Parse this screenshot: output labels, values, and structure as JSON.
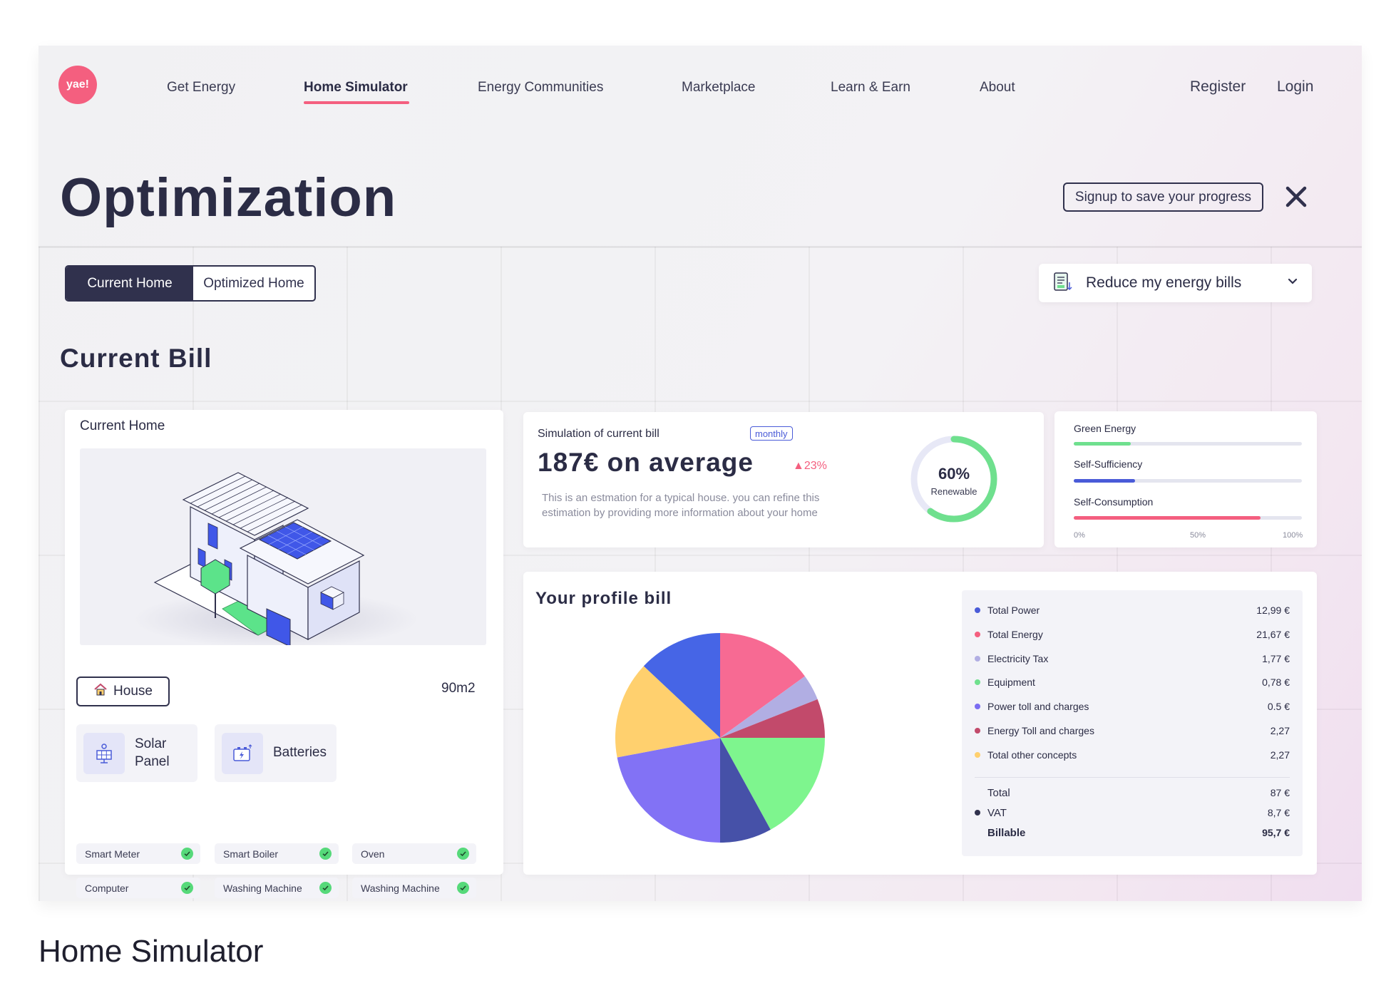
{
  "brand": {
    "logo_text": "yae!",
    "accent": "#f45f7f",
    "navy": "#30314d"
  },
  "nav": {
    "items": [
      {
        "label": "Get Energy",
        "active": false
      },
      {
        "label": "Home Simulator",
        "active": true
      },
      {
        "label": "Energy Communities",
        "active": false
      },
      {
        "label": "Marketplace",
        "active": false
      },
      {
        "label": "Learn & Earn",
        "active": false
      },
      {
        "label": "About",
        "active": false
      }
    ],
    "register": "Register",
    "login": "Login"
  },
  "page": {
    "title": "Optimization",
    "signup_label": "Signup to save your progress",
    "close_icon": "close-icon"
  },
  "toggle": {
    "options": [
      "Current Home",
      "Optimized Home"
    ],
    "selected": "Current Home"
  },
  "goal_select": {
    "value": "Reduce my energy bills",
    "icon": "bill-icon"
  },
  "section": {
    "title": "Current Bill"
  },
  "home_card": {
    "title": "Current Home",
    "type_label": "House",
    "area": "90m2",
    "features": [
      {
        "label_line1": "Solar",
        "label_line2": "Panel",
        "icon": "solar-panel-icon"
      },
      {
        "label_line1": "Batteries",
        "label_line2": "",
        "icon": "battery-icon"
      }
    ],
    "appliances": [
      {
        "label": "Smart Meter",
        "checked": true
      },
      {
        "label": "Smart Boiler",
        "checked": true
      },
      {
        "label": "Oven",
        "checked": true
      },
      {
        "label": "Computer",
        "checked": true
      },
      {
        "label": "Washing Machine",
        "checked": true
      },
      {
        "label": "Washing Machine",
        "checked": true
      }
    ]
  },
  "bill": {
    "label": "Simulation of current bill",
    "period": "monthly",
    "average": "187€ on average",
    "delta": "23%",
    "description": "This is an estmation for a typical house. you can refine this estimation by providing more information about your home",
    "renewable_pct": "60%",
    "renewable_fraction": 0.6,
    "renewable_label": "Renewable"
  },
  "bars": {
    "items": [
      {
        "label": "Green Energy",
        "fraction": 0.25,
        "color": "#6fe08e"
      },
      {
        "label": "Self-Sufficiency",
        "fraction": 0.27,
        "color": "#4a5bd8"
      },
      {
        "label": "Self-Consumption",
        "fraction": 0.82,
        "color": "#f45f7f"
      }
    ],
    "ticks": [
      "0%",
      "50%",
      "100%"
    ]
  },
  "profile": {
    "title": "Your profile bill",
    "legend": [
      {
        "name": "Total Power",
        "value": "12,99 €",
        "color": "#4a5bd8"
      },
      {
        "name": "Total Energy",
        "value": "21,67 €",
        "color": "#f45f7f"
      },
      {
        "name": "Electricity Tax",
        "value": "1,77 €",
        "color": "#b1aee3"
      },
      {
        "name": "Equipment",
        "value": "0,78 €",
        "color": "#6fe08e"
      },
      {
        "name": "Power toll and charges",
        "value": "0.5 €",
        "color": "#7a6cf2"
      },
      {
        "name": "Energy Toll and charges",
        "value": "2,27",
        "color": "#c24a6b"
      },
      {
        "name": "Total other concepts",
        "value": "2,27",
        "color": "#ffd06e"
      }
    ],
    "totals": [
      {
        "name": "Total",
        "value": "87 €",
        "dot": false,
        "bold": false
      },
      {
        "name": "VAT",
        "value": "8,7 €",
        "dot": true,
        "bold": false
      },
      {
        "name": "Billable",
        "value": "95,7 €",
        "dot": false,
        "bold": true
      }
    ],
    "chart_data": {
      "type": "pie",
      "slices": [
        {
          "color": "#f76a93",
          "fraction": 0.15
        },
        {
          "color": "#b1aee3",
          "fraction": 0.04
        },
        {
          "color": "#c24a6b",
          "fraction": 0.06
        },
        {
          "color": "#7ef58e",
          "fraction": 0.17
        },
        {
          "color": "#4651a8",
          "fraction": 0.08
        },
        {
          "color": "#8272f5",
          "fraction": 0.22
        },
        {
          "color": "#ffd06e",
          "fraction": 0.15
        },
        {
          "color": "#4665e6",
          "fraction": 0.13
        }
      ]
    }
  },
  "caption": "Home Simulator"
}
